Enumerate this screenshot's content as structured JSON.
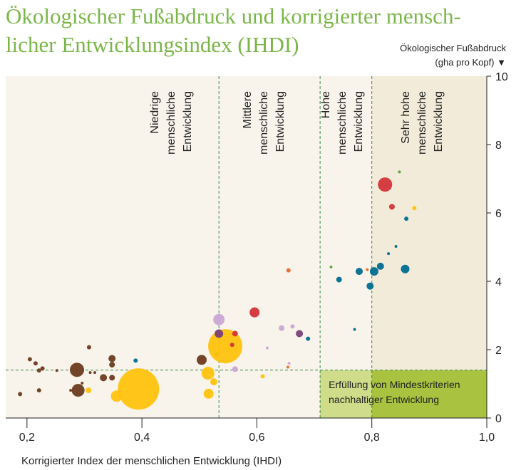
{
  "chart_data": {
    "type": "bubble",
    "title": [
      "Ökologischer Fußabdruck und korrigierter mensch-",
      "licher Entwicklungsindex (IHDI)"
    ],
    "y_label": [
      "Ökologischer Fußabdruck",
      "(gha pro Kopf) ▼"
    ],
    "x_label": "Korrigierter Index der menschlichen Entwicklung (IHDI)",
    "xlim": [
      0.163,
      1.0
    ],
    "ylim": [
      0,
      10
    ],
    "xticks": [
      {
        "value": 0.2,
        "label": "0,2"
      },
      {
        "value": 0.4,
        "label": "0,4"
      },
      {
        "value": 0.6,
        "label": "0,6"
      },
      {
        "value": 0.8,
        "label": "0,8"
      },
      {
        "value": 1.0,
        "label": "1,0"
      }
    ],
    "yticks": [
      0,
      2,
      4,
      6,
      8,
      10
    ],
    "x_thresholds": [
      0.534,
      0.71,
      0.8
    ],
    "y_threshold": 1.4,
    "regions": [
      [
        "Niedrige",
        "menschliche",
        "Entwicklung"
      ],
      [
        "Mittlere",
        "menschliche",
        "Entwicklung"
      ],
      [
        "Hohe",
        "menschliche",
        "Entwicklung"
      ],
      [
        "Sehr hohe",
        "menschliche",
        "Entwicklung"
      ]
    ],
    "sustainable_label": [
      "Erfüllung von Mindestkriterien",
      "nachhaltiger Entwicklung"
    ],
    "series": [
      {
        "color": "#6b3a1f",
        "x": [
          0.287,
          0.289,
          0.205,
          0.215,
          0.221,
          0.227,
          0.221,
          0.188,
          0.308,
          0.348,
          0.348,
          0.333,
          0.348,
          0.31,
          0.318,
          0.296,
          0.276,
          0.504,
          0.53,
          0.252
        ],
        "values": [
          1.41,
          0.81,
          1.72,
          1.6,
          1.39,
          1.45,
          0.81,
          0.7,
          2.07,
          1.74,
          1.56,
          1.18,
          1.18,
          1.33,
          1.33,
          1.02,
          0.81,
          1.7,
          1.87,
          1.39
        ],
        "sizes": [
          10,
          9,
          3,
          3,
          3,
          3,
          3,
          3,
          3,
          5,
          4,
          5,
          4,
          2,
          2,
          2,
          2,
          7,
          3,
          2
        ]
      },
      {
        "color": "#ffc20e",
        "x": [
          0.394,
          0.356,
          0.545,
          0.515,
          0.516,
          0.525,
          0.307,
          0.61,
          0.874
        ],
        "values": [
          0.85,
          0.64,
          2.1,
          1.31,
          0.71,
          1.06,
          0.81,
          1.22,
          6.14
        ],
        "sizes": [
          29,
          8,
          24,
          9,
          7,
          5,
          4,
          3,
          3
        ]
      },
      {
        "color": "#c9a8d4",
        "x": [
          0.534,
          0.562,
          0.643,
          0.662,
          0.656,
          0.618
        ],
        "values": [
          2.88,
          1.43,
          2.63,
          2.68,
          1.6,
          2.05
        ],
        "sizes": [
          8,
          4,
          4,
          3,
          2,
          2
        ]
      },
      {
        "color": "#7b3f7a",
        "x": [
          0.534,
          0.674
        ],
        "values": [
          2.47,
          2.47
        ],
        "sizes": [
          6,
          5
        ]
      },
      {
        "color": "#d2343a",
        "x": [
          0.596,
          0.823,
          0.835,
          0.562,
          0.557
        ],
        "values": [
          3.09,
          6.83,
          6.18,
          2.47,
          2.14
        ],
        "sizes": [
          7,
          10,
          4,
          4,
          3
        ]
      },
      {
        "color": "#006d8f",
        "x": [
          0.743,
          0.778,
          0.797,
          0.804,
          0.815,
          0.858,
          0.86,
          0.389,
          0.689,
          0.77,
          0.829,
          0.842
        ],
        "values": [
          4.05,
          4.29,
          3.86,
          4.29,
          4.44,
          4.36,
          5.83,
          1.68,
          2.32,
          2.59,
          4.81,
          5.02
        ],
        "sizes": [
          4,
          5,
          5,
          6,
          5,
          6,
          3,
          3,
          3,
          2,
          2,
          2
        ]
      },
      {
        "color": "#e8692a",
        "x": [
          0.655,
          0.792,
          0.654
        ],
        "values": [
          4.32,
          4.34,
          1.49
        ],
        "sizes": [
          3,
          2,
          2
        ]
      },
      {
        "color": "#5aa03c",
        "x": [
          0.729,
          0.848
        ],
        "values": [
          4.42,
          7.2
        ],
        "sizes": [
          2,
          2
        ]
      }
    ]
  }
}
